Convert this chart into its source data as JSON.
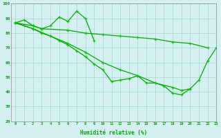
{
  "x_labels": [
    "0",
    "1",
    "2",
    "3",
    "4",
    "5",
    "6",
    "7",
    "8",
    "9",
    "10",
    "11",
    "12",
    "13",
    "14",
    "15",
    "16",
    "17",
    "18",
    "19",
    "20",
    "21",
    "22",
    "23"
  ],
  "xlabel": "Humidité relative (%)",
  "ylim": [
    20,
    100
  ],
  "xlim": [
    -0.5,
    23
  ],
  "yticks": [
    20,
    30,
    40,
    50,
    60,
    70,
    80,
    90,
    100
  ],
  "background_color": "#d4f0f0",
  "grid_color": "#b0d8d8",
  "line_color": "#00aa00",
  "marker_color": "#00cc00",
  "s1_x": [
    0,
    1,
    2,
    3,
    4,
    5,
    6,
    7,
    8,
    9
  ],
  "s1_y": [
    87,
    89,
    85,
    83,
    85,
    91,
    88,
    95,
    90,
    75
  ],
  "s2_x": [
    0,
    2,
    3,
    6,
    8,
    10,
    12,
    14,
    16,
    18,
    20,
    22
  ],
  "s2_y": [
    87,
    85,
    83,
    82,
    80,
    79,
    78,
    77,
    76,
    74,
    73,
    70
  ],
  "s3_x": [
    0,
    2,
    4,
    6,
    8,
    10,
    12,
    14,
    16,
    18,
    19,
    20
  ],
  "s3_y": [
    87,
    83,
    78,
    73,
    67,
    60,
    55,
    51,
    46,
    43,
    41,
    42
  ],
  "s4_x": [
    0,
    1,
    2,
    3,
    4,
    5,
    6,
    7,
    8,
    9,
    10,
    11,
    12,
    13,
    14,
    15,
    16,
    17,
    18,
    19,
    20,
    21,
    22,
    23
  ],
  "s4_y": [
    87,
    85,
    83,
    80,
    78,
    75,
    72,
    68,
    64,
    59,
    55,
    47,
    48,
    49,
    51,
    46,
    46,
    44,
    39,
    38,
    42,
    48,
    61,
    70
  ]
}
